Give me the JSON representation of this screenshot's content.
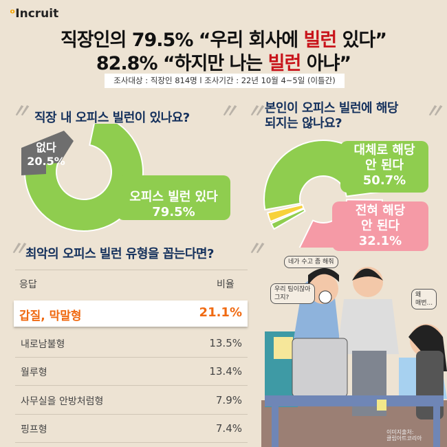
{
  "logo": "Incruit",
  "headline": {
    "line1_pre": "직장인의 79.5% “우리 회사에 ",
    "line1_red": "빌런",
    "line1_post": " 있다”",
    "line2_pre": "82.8% “하지만 나는 ",
    "line2_red": "빌런",
    "line2_post": " 아냐”"
  },
  "survey_info": "조사대상 : 직장인 814명 l 조사기간 : 22년 10월 4~5일 (이틀간)",
  "colors": {
    "green": "#8fcd4f",
    "gray": "#6e6e6e",
    "pink": "#f59aa6",
    "yellow": "#f7d13a",
    "highlight": "#f06a12",
    "navy": "#14305c"
  },
  "chart_data": [
    {
      "type": "pie",
      "title": "직장 내 오피스 빌런이 있나요?",
      "donut": true,
      "series": [
        {
          "label": "오피스 빌런 있다",
          "value": 79.5,
          "color": "#8fcd4f"
        },
        {
          "label": "없다",
          "value": 20.5,
          "color": "#6e6e6e"
        }
      ]
    },
    {
      "type": "pie",
      "title": "본인이 오피스 빌런에 해당 되지는 않나요?",
      "donut": true,
      "series": [
        {
          "label": "대체로 해당 안 된다",
          "value": 50.7,
          "color": "#8fcd4f"
        },
        {
          "label": "전혀 해당 안 된다",
          "value": 32.1,
          "color": "#f59aa6"
        }
      ]
    },
    {
      "type": "table",
      "title": "최악의 오피스 빌런 유형을 꼽는다면?",
      "columns": [
        "응답",
        "비율"
      ],
      "rows": [
        [
          "갑질, 막말형",
          "21.1%"
        ],
        [
          "내로남불형",
          "13.5%"
        ],
        [
          "월루형",
          "13.4%"
        ],
        [
          "사무실을 안방처럼형",
          "7.9%"
        ],
        [
          "핑프형",
          "7.4%"
        ]
      ],
      "highlight_row": 0
    }
  ],
  "donut1_labels": {
    "yes_1": "오피스 빌런 있다",
    "yes_2": "79.5%",
    "no_1": "없다",
    "no_2": "20.5%"
  },
  "donut2_labels": {
    "a_1": "대체로 해당",
    "a_2": "안 된다",
    "a_3": "50.7%",
    "b_1": "전혀 해당",
    "b_2": "안 된다",
    "b_3": "32.1%"
  },
  "q2_line1": "본인이 오피스 빌런에 해당",
  "q2_line2": "되지는 않나요?",
  "bubbles": {
    "b1": "네가 수고 좀 해줘",
    "b2_1": "우리 팀이잖아",
    "b2_2": "그지?",
    "b3_1": "왜",
    "b3_2": "매번..."
  },
  "credit_1": "이미지출처:",
  "credit_2": "클립아트코리아"
}
